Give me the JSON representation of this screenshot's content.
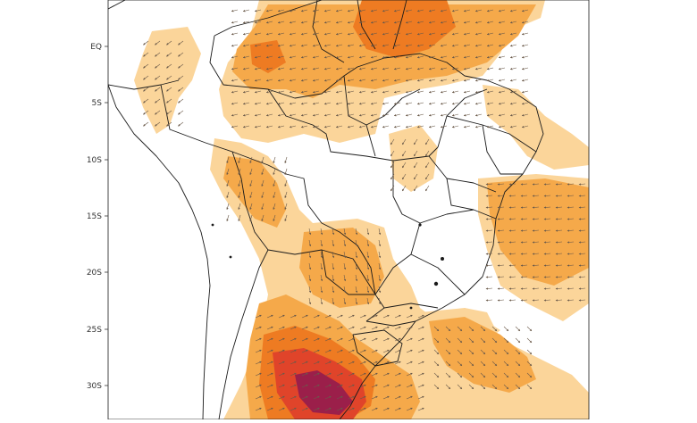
{
  "map": {
    "latitude_labels": [
      "EQ",
      "5S",
      "10S",
      "15S",
      "20S",
      "25S",
      "30S"
    ],
    "colors": {
      "background": "#ffffff",
      "border": "#1a1a1a",
      "shade_light": "#fbd59a",
      "shade_medium": "#f5a94a",
      "shade_strong": "#ee7b22",
      "shade_high": "#e0442a",
      "shade_max": "#9b1f4a",
      "arrow": "#6b5a4a"
    },
    "icons": [
      "wind-vector-arrow"
    ]
  }
}
